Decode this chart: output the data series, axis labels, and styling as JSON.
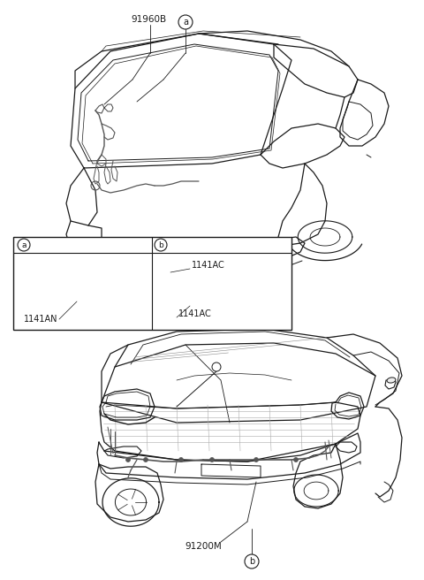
{
  "bg_color": "#ffffff",
  "line_color": "#1a1a1a",
  "dark_gray": "#555555",
  "mid_gray": "#888888",
  "label_91960B": "91960B",
  "label_91200M": "91200M",
  "label_1141AN": "1141AN",
  "label_1141AC": "1141AC",
  "label_a": "a",
  "label_b": "b",
  "fig_width": 4.8,
  "fig_height": 6.56,
  "dpi": 100
}
